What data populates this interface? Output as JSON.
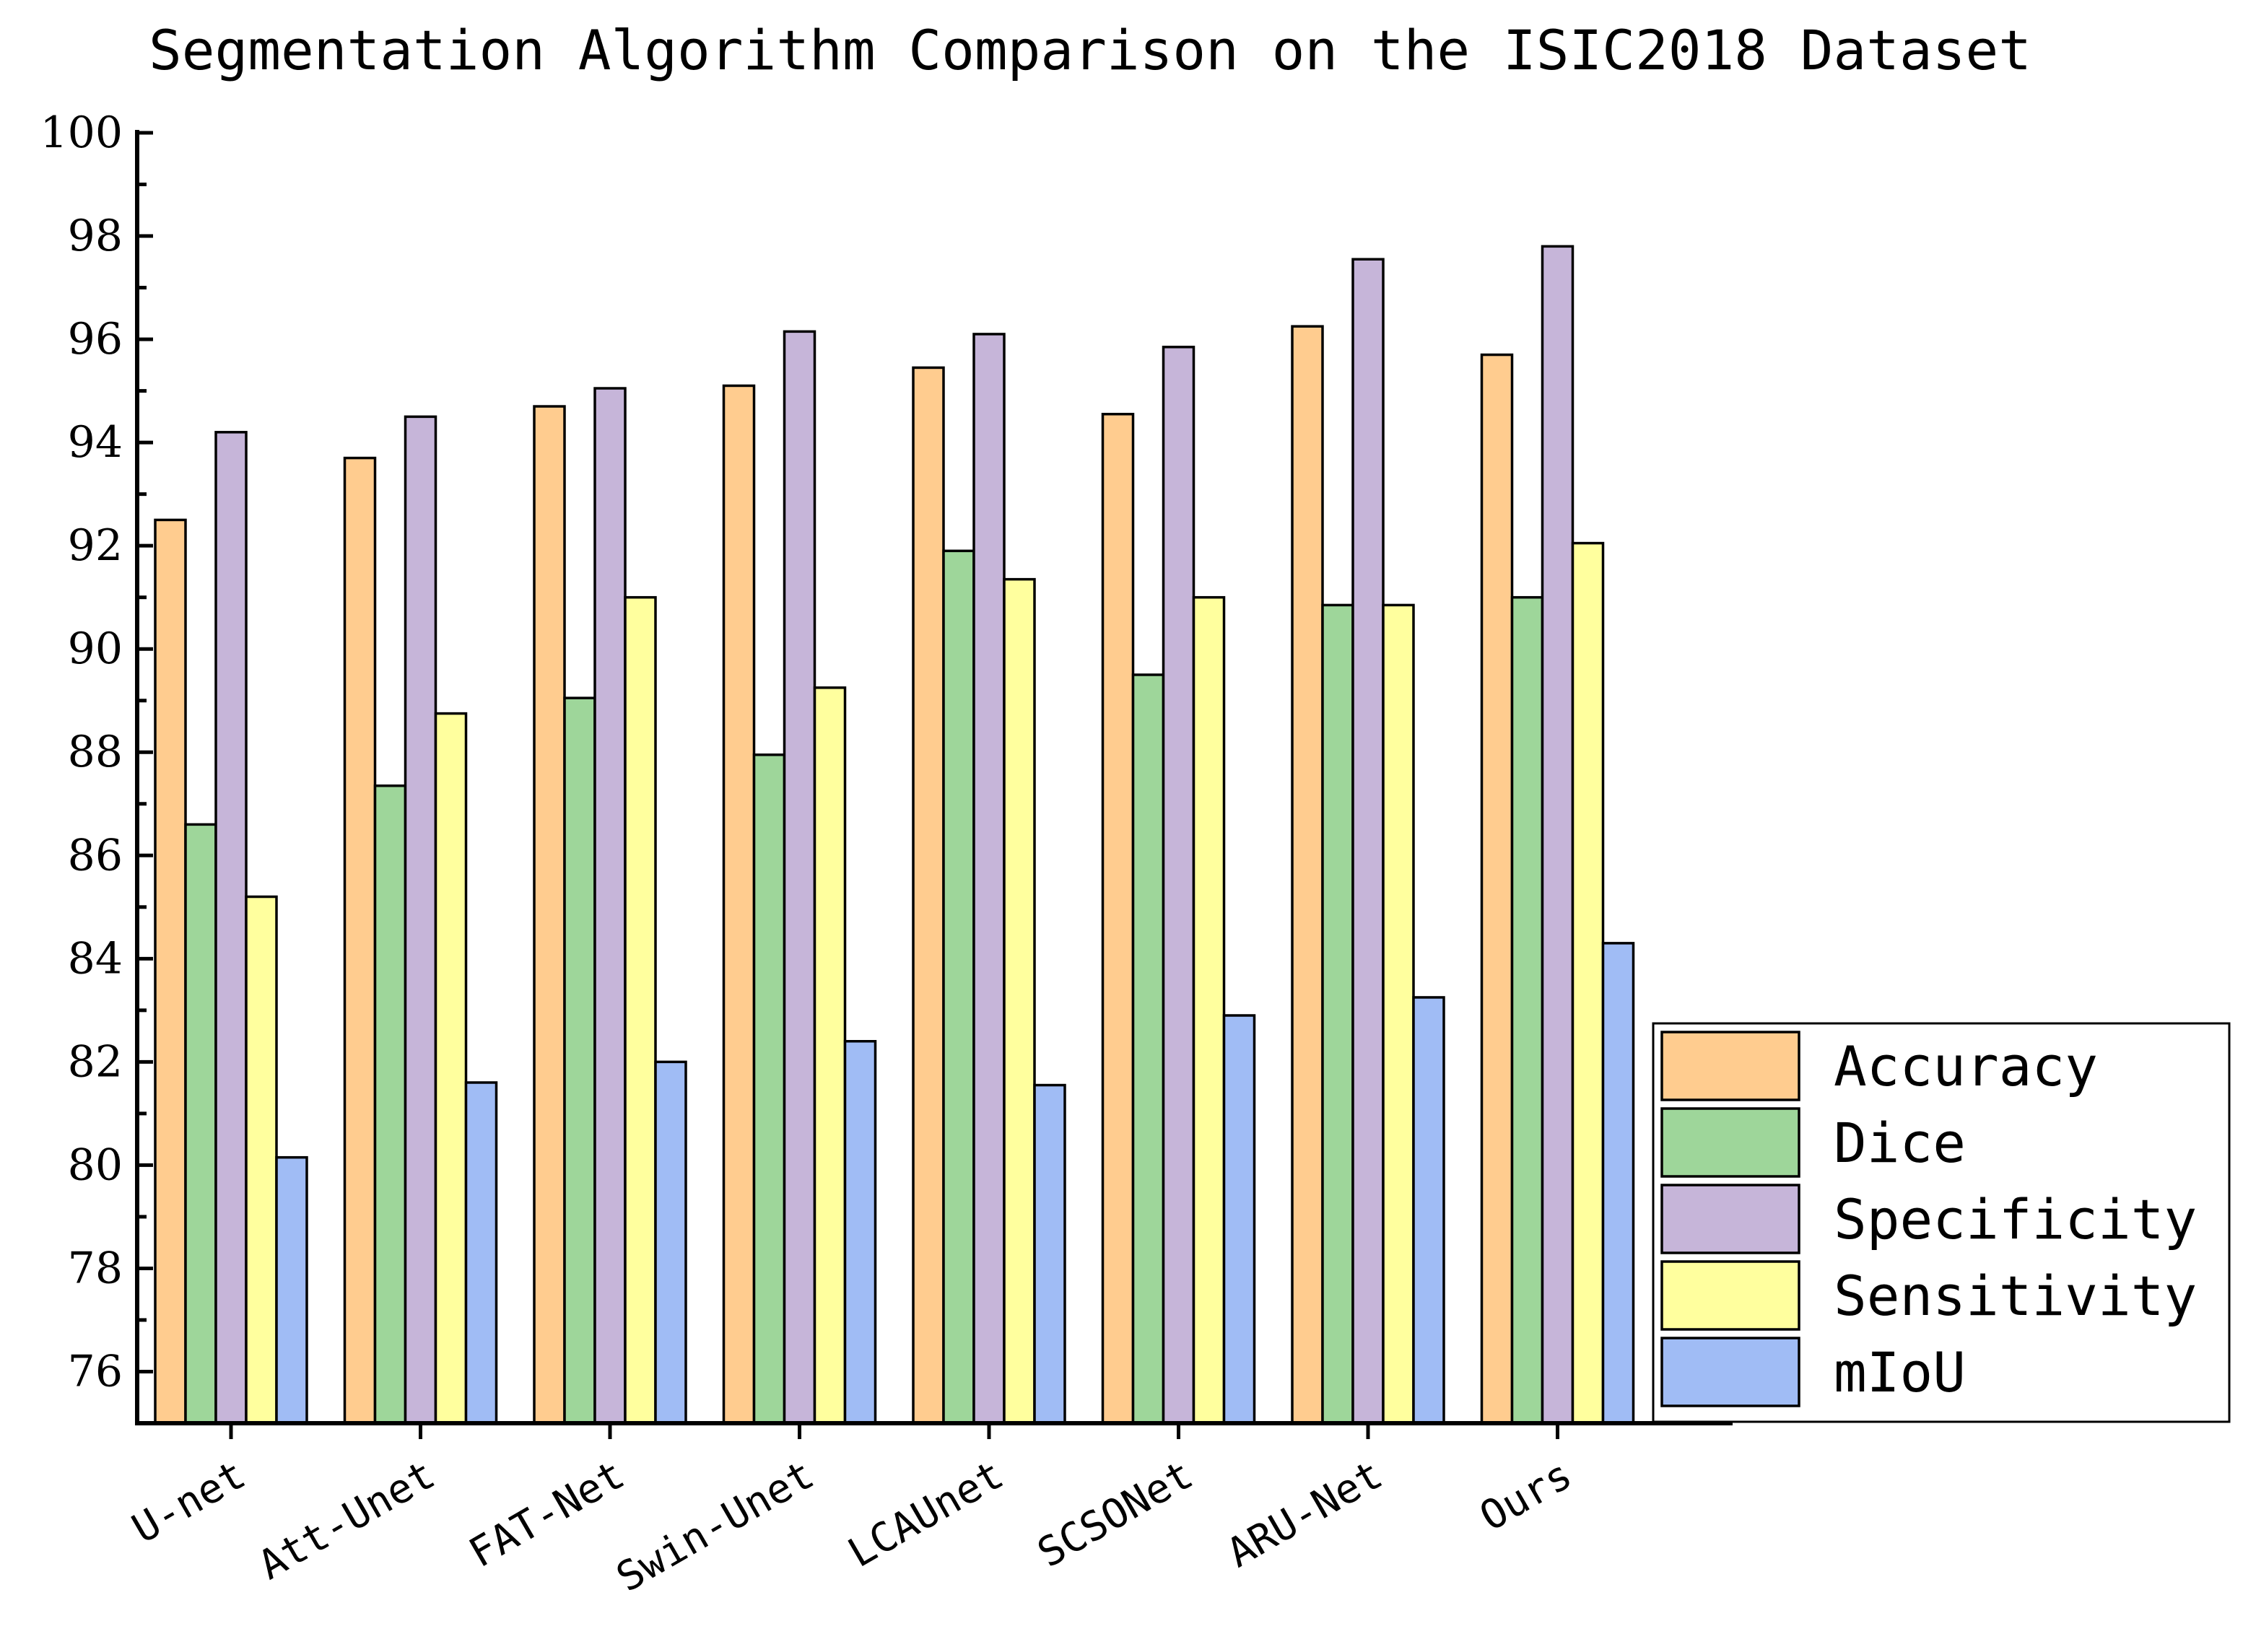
{
  "chart_data": {
    "type": "bar",
    "title": "Segmentation Algorithm Comparison on the ISIC2018 Dataset",
    "xlabel": "",
    "ylabel": "",
    "ylim": [
      75,
      100
    ],
    "yticks": [
      76,
      78,
      80,
      82,
      84,
      86,
      88,
      90,
      92,
      94,
      96,
      98,
      100
    ],
    "grid": false,
    "legend_position": "bottom-right",
    "categories": [
      "U-net",
      "Att-Unet",
      "FAT-Net",
      "Swin-Unet",
      "LCAUnet",
      "SCSONet",
      "ARU-Net",
      "Ours"
    ],
    "series": [
      {
        "name": "Accuracy",
        "color": "#FFCC8F",
        "values": [
          92.5,
          93.7,
          94.7,
          95.1,
          95.45,
          94.55,
          96.25,
          95.7
        ]
      },
      {
        "name": "Dice",
        "color": "#9ED69A",
        "values": [
          86.6,
          87.35,
          89.05,
          87.95,
          91.9,
          89.5,
          90.85,
          91.0
        ]
      },
      {
        "name": "Specificity",
        "color": "#C6B5D9",
        "values": [
          94.2,
          94.5,
          95.05,
          96.15,
          96.1,
          95.85,
          97.55,
          97.8
        ]
      },
      {
        "name": "Sensitivity",
        "color": "#FFFF9E",
        "values": [
          85.2,
          88.75,
          91.0,
          89.25,
          91.35,
          91.0,
          90.85,
          92.05
        ]
      },
      {
        "name": "mIoU",
        "color": "#A0BCF5",
        "values": [
          80.15,
          81.6,
          82.0,
          82.4,
          81.55,
          82.9,
          83.25,
          84.3
        ]
      }
    ]
  }
}
